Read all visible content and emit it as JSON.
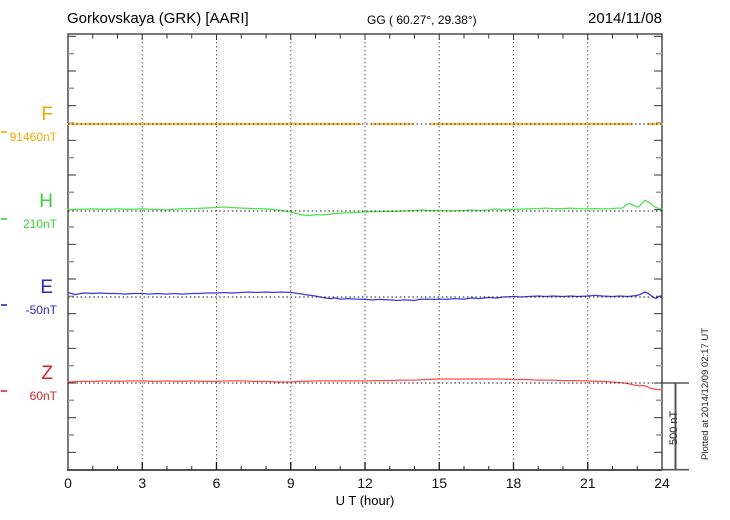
{
  "header": {
    "title": "Gorkovskaya (GRK)  [AARI]",
    "coords": "GG ( 60.27°,  29.38°)",
    "date": "2014/11/08"
  },
  "footer_note": "Plotted at 2014/12/09 02:17 UT",
  "scale_bar": {
    "label": "500 nT",
    "span_nT": 500
  },
  "chart_data": {
    "type": "line",
    "title": "Gorkovskaya (GRK) [AARI] magnetogram for 2014/11/08",
    "xlabel": "U T (hour)",
    "x_range": [
      0,
      24
    ],
    "x_ticks": [
      "0",
      "3",
      "6",
      "9",
      "12",
      "15",
      "18",
      "21",
      "24"
    ],
    "x_minor_tick_step_hours": 1,
    "grid": "vertical dotted gridlines every 3 hours; dotted horizontal baseline per channel",
    "y_minor_tick_nT": 100,
    "y_scale_bar_nT": 500,
    "series": [
      {
        "name": "F",
        "base_label": "91460nT",
        "base_value": 91460,
        "label_color": "#f5a800",
        "color": "#ffc34d",
        "segments": [
          [
            [
              0,
              91460
            ],
            [
              11.8,
              91460
            ]
          ],
          [
            [
              12.28,
              91460
            ],
            [
              13.94,
              91460
            ]
          ],
          [
            [
              14.63,
              91460
            ],
            [
              22.79,
              91460
            ]
          ],
          [
            [
              23.43,
              91460
            ],
            [
              24,
              91460
            ]
          ]
        ]
      },
      {
        "name": "H",
        "base_label": "210nT",
        "base_value": 210,
        "label_color": "#33d633",
        "color": "#4de44d",
        "segments": [
          [
            [
              0,
              219
            ],
            [
              0.5,
              219
            ],
            [
              1,
              222
            ],
            [
              1.5,
              219
            ],
            [
              2,
              222
            ],
            [
              2.5,
              219
            ],
            [
              3,
              222
            ],
            [
              3.5,
              219
            ],
            [
              4,
              216
            ],
            [
              4.5,
              222
            ],
            [
              5,
              224
            ],
            [
              5.5,
              227
            ],
            [
              6,
              230
            ],
            [
              6.3,
              233
            ],
            [
              6.6,
              230
            ],
            [
              7,
              227
            ],
            [
              7.5,
              224
            ],
            [
              8,
              222
            ],
            [
              8.5,
              216
            ],
            [
              8.8,
              210
            ],
            [
              9,
              204
            ],
            [
              9.2,
              196
            ],
            [
              9.5,
              187
            ],
            [
              9.8,
              184
            ],
            [
              10,
              190
            ],
            [
              10.2,
              187
            ],
            [
              10.5,
              190
            ],
            [
              10.8,
              196
            ],
            [
              11,
              198
            ],
            [
              11.5,
              201
            ],
            [
              12,
              204
            ],
            [
              12.5,
              207
            ],
            [
              13,
              207
            ],
            [
              13.5,
              210
            ],
            [
              14,
              213
            ],
            [
              14.3,
              216
            ],
            [
              14.6,
              213
            ],
            [
              15,
              213
            ],
            [
              15.5,
              210
            ],
            [
              16,
              213
            ],
            [
              16.3,
              216
            ],
            [
              16.6,
              213
            ],
            [
              17,
              216
            ],
            [
              17.3,
              222
            ],
            [
              17.6,
              216
            ],
            [
              18,
              219
            ],
            [
              18.5,
              222
            ],
            [
              19,
              224
            ],
            [
              19.3,
              227
            ],
            [
              19.6,
              224
            ],
            [
              20,
              224
            ],
            [
              20.3,
              227
            ],
            [
              20.6,
              224
            ],
            [
              21,
              222
            ],
            [
              21.3,
              224
            ],
            [
              21.6,
              222
            ],
            [
              22,
              224
            ],
            [
              22.2,
              227
            ],
            [
              22.4,
              227
            ],
            [
              22.55,
              245
            ],
            [
              22.7,
              253
            ],
            [
              22.85,
              242
            ],
            [
              23,
              233
            ],
            [
              23.1,
              239
            ],
            [
              23.2,
              256
            ],
            [
              23.3,
              271
            ],
            [
              23.45,
              262
            ],
            [
              23.6,
              245
            ],
            [
              23.75,
              230
            ],
            [
              23.9,
              224
            ],
            [
              24,
              222
            ]
          ]
        ]
      },
      {
        "name": "E",
        "base_label": "-50nT",
        "base_value": -50,
        "label_color": "#2929c8",
        "color": "#3c3cdc",
        "segments": [
          [
            [
              0,
              -24
            ],
            [
              0.15,
              -30
            ],
            [
              0.3,
              -36
            ],
            [
              0.5,
              -30
            ],
            [
              0.7,
              -27
            ],
            [
              1,
              -30
            ],
            [
              1.3,
              -27
            ],
            [
              1.6,
              -30
            ],
            [
              2,
              -30
            ],
            [
              2.3,
              -33
            ],
            [
              2.6,
              -30
            ],
            [
              3,
              -30
            ],
            [
              3.3,
              -33
            ],
            [
              3.6,
              -30
            ],
            [
              4,
              -33
            ],
            [
              4.3,
              -30
            ],
            [
              4.6,
              -33
            ],
            [
              5,
              -30
            ],
            [
              5.3,
              -30
            ],
            [
              5.6,
              -27
            ],
            [
              6,
              -27
            ],
            [
              6.3,
              -24
            ],
            [
              6.6,
              -27
            ],
            [
              7,
              -24
            ],
            [
              7.3,
              -21
            ],
            [
              7.6,
              -24
            ],
            [
              8,
              -21
            ],
            [
              8.3,
              -24
            ],
            [
              8.6,
              -21
            ],
            [
              9,
              -24
            ],
            [
              9.3,
              -30
            ],
            [
              9.6,
              -36
            ],
            [
              10,
              -44
            ],
            [
              10.2,
              -50
            ],
            [
              10.4,
              -56
            ],
            [
              10.6,
              -59
            ],
            [
              10.8,
              -56
            ],
            [
              11,
              -62
            ],
            [
              11.3,
              -59
            ],
            [
              11.6,
              -62
            ],
            [
              12,
              -64
            ],
            [
              12.3,
              -67
            ],
            [
              12.6,
              -64
            ],
            [
              13,
              -67
            ],
            [
              13.3,
              -70
            ],
            [
              13.6,
              -67
            ],
            [
              14,
              -70
            ],
            [
              14.2,
              -64
            ],
            [
              14.5,
              -62
            ],
            [
              14.8,
              -64
            ],
            [
              15,
              -62
            ],
            [
              15.3,
              -64
            ],
            [
              15.6,
              -59
            ],
            [
              16,
              -62
            ],
            [
              16.3,
              -56
            ],
            [
              16.6,
              -59
            ],
            [
              17,
              -53
            ],
            [
              17.3,
              -56
            ],
            [
              17.6,
              -50
            ],
            [
              18,
              -47
            ],
            [
              18.3,
              -50
            ],
            [
              18.6,
              -47
            ],
            [
              19,
              -44
            ],
            [
              19.3,
              -47
            ],
            [
              19.6,
              -44
            ],
            [
              20,
              -47
            ],
            [
              20.3,
              -44
            ],
            [
              20.6,
              -47
            ],
            [
              21,
              -44
            ],
            [
              21.3,
              -41
            ],
            [
              21.6,
              -44
            ],
            [
              22,
              -47
            ],
            [
              22.3,
              -44
            ],
            [
              22.6,
              -47
            ],
            [
              22.8,
              -44
            ],
            [
              23,
              -41
            ],
            [
              23.15,
              -33
            ],
            [
              23.3,
              -21
            ],
            [
              23.45,
              -30
            ],
            [
              23.6,
              -47
            ],
            [
              23.75,
              -59
            ],
            [
              23.85,
              -50
            ],
            [
              24,
              -41
            ]
          ]
        ]
      },
      {
        "name": "Z",
        "base_label": "60nT",
        "base_value": 60,
        "label_color": "#e02020",
        "color": "#ff4d4d",
        "segments": [
          [
            [
              0,
              66
            ],
            [
              0.5,
              69
            ],
            [
              1,
              69
            ],
            [
              1.5,
              72
            ],
            [
              2,
              69
            ],
            [
              2.5,
              72
            ],
            [
              3,
              72
            ],
            [
              3.5,
              69
            ],
            [
              4,
              72
            ],
            [
              4.5,
              69
            ],
            [
              5,
              72
            ],
            [
              5.5,
              69
            ],
            [
              6,
              69
            ],
            [
              6.5,
              72
            ],
            [
              7,
              72
            ],
            [
              7.5,
              69
            ],
            [
              8,
              69
            ],
            [
              8.5,
              66
            ],
            [
              9,
              66
            ],
            [
              9.3,
              69
            ],
            [
              9.6,
              69
            ],
            [
              10,
              72
            ],
            [
              10.5,
              72
            ],
            [
              11,
              72
            ],
            [
              11.5,
              72
            ],
            [
              12,
              72
            ],
            [
              12.5,
              74
            ],
            [
              13,
              74
            ],
            [
              13.5,
              77
            ],
            [
              14,
              77
            ],
            [
              14.5,
              80
            ],
            [
              15,
              83
            ],
            [
              15.5,
              83
            ],
            [
              16,
              83
            ],
            [
              16.5,
              83
            ],
            [
              17,
              83
            ],
            [
              17.5,
              83
            ],
            [
              18,
              80
            ],
            [
              18.5,
              80
            ],
            [
              19,
              77
            ],
            [
              19.5,
              77
            ],
            [
              20,
              74
            ],
            [
              20.5,
              74
            ],
            [
              21,
              72
            ],
            [
              21.3,
              69
            ],
            [
              21.6,
              69
            ],
            [
              22,
              66
            ],
            [
              22.3,
              63
            ],
            [
              22.6,
              57
            ],
            [
              22.9,
              48
            ],
            [
              23.1,
              43
            ],
            [
              23.2,
              46
            ],
            [
              23.4,
              40
            ],
            [
              23.5,
              31
            ],
            [
              23.7,
              25
            ],
            [
              23.85,
              22
            ],
            [
              24,
              22
            ]
          ]
        ]
      }
    ]
  }
}
